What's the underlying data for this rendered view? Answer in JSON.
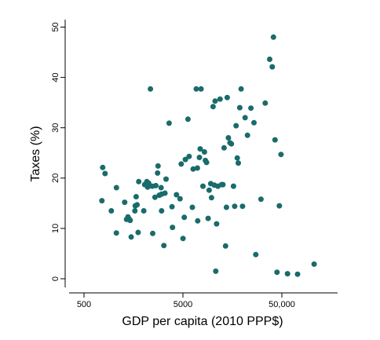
{
  "chart_data": {
    "type": "scatter",
    "title": "",
    "xlabel": "GDP per capita (2010 PPP$)",
    "ylabel": "Taxes (%)",
    "x_scale": "log",
    "xlim": [
      300,
      150000
    ],
    "ylim": [
      -2,
      52
    ],
    "x_ticks": [
      500,
      5000,
      50000
    ],
    "x_tick_labels": [
      "500",
      "5000",
      "50,000"
    ],
    "y_ticks": [
      0,
      10,
      20,
      30,
      40,
      50
    ],
    "y_tick_labels": [
      "0",
      "10",
      "20",
      "30",
      "40",
      "50"
    ],
    "grid": false,
    "marker_color": "#1a6b6b",
    "points": [
      [
        773,
        22.1
      ],
      [
        816,
        20.9
      ],
      [
        944,
        13.5
      ],
      [
        1064,
        18.1
      ],
      [
        758,
        15.5
      ],
      [
        1061,
        9.1
      ],
      [
        1289,
        15.2
      ],
      [
        1426,
        11.9
      ],
      [
        1347,
        11.8
      ],
      [
        1391,
        12.3
      ],
      [
        1465,
        11.6
      ],
      [
        1499,
        8.3
      ],
      [
        1635,
        13.5
      ],
      [
        1682,
        16.3
      ],
      [
        1648,
        14.5
      ],
      [
        1719,
        14.7
      ],
      [
        1762,
        9.2
      ],
      [
        1788,
        19.3
      ],
      [
        2054,
        18.7
      ],
      [
        2009,
        13.5
      ],
      [
        2156,
        19.3
      ],
      [
        2201,
        18.2
      ],
      [
        2248,
        19.0
      ],
      [
        2346,
        37.7
      ],
      [
        2448,
        18.4
      ],
      [
        2474,
        9.0
      ],
      [
        2662,
        18.5
      ],
      [
        2607,
        16.2
      ],
      [
        2803,
        22.4
      ],
      [
        2770,
        21.0
      ],
      [
        2885,
        16.6
      ],
      [
        3042,
        13.5
      ],
      [
        3010,
        18.1
      ],
      [
        3044,
        16.8
      ],
      [
        3205,
        6.6
      ],
      [
        3289,
        17.0
      ],
      [
        3375,
        19.8
      ],
      [
        3624,
        30.9
      ],
      [
        3876,
        14.3
      ],
      [
        3918,
        10.2
      ],
      [
        4307,
        16.7
      ],
      [
        4673,
        15.9
      ],
      [
        4807,
        22.8
      ],
      [
        5013,
        8.0
      ],
      [
        5154,
        12.2
      ],
      [
        5288,
        23.7
      ],
      [
        5620,
        31.7
      ],
      [
        5775,
        24.3
      ],
      [
        6221,
        14.2
      ],
      [
        6346,
        21.8
      ],
      [
        6822,
        37.7
      ],
      [
        7053,
        11.5
      ],
      [
        7001,
        22.0
      ],
      [
        7333,
        24.1
      ],
      [
        7474,
        25.8
      ],
      [
        7626,
        37.7
      ],
      [
        7964,
        18.4
      ],
      [
        8248,
        25.2
      ],
      [
        8432,
        23.5
      ],
      [
        8672,
        23.1
      ],
      [
        8992,
        12.0
      ],
      [
        9202,
        17.6
      ],
      [
        9543,
        18.9
      ],
      [
        9719,
        16.1
      ],
      [
        10083,
        34.2
      ],
      [
        10385,
        18.6
      ],
      [
        10582,
        35.3
      ],
      [
        10729,
        1.5
      ],
      [
        10958,
        10.9
      ],
      [
        11279,
        18.4
      ],
      [
        11863,
        35.7
      ],
      [
        12318,
        18.7
      ],
      [
        12678,
        18.7
      ],
      [
        13029,
        26.0
      ],
      [
        13475,
        6.5
      ],
      [
        13764,
        14.2
      ],
      [
        14026,
        36.0
      ],
      [
        14401,
        28.0
      ],
      [
        14929,
        27.0
      ],
      [
        15442,
        26.8
      ],
      [
        16223,
        18.4
      ],
      [
        16669,
        14.4
      ],
      [
        17223,
        30.4
      ],
      [
        17718,
        24.0
      ],
      [
        18138,
        23.0
      ],
      [
        18767,
        34.0
      ],
      [
        19380,
        37.7
      ],
      [
        20014,
        14.4
      ],
      [
        21240,
        32.0
      ],
      [
        22447,
        28.5
      ],
      [
        24357,
        33.9
      ],
      [
        26131,
        31.0
      ],
      [
        27271,
        4.8
      ],
      [
        30734,
        15.8
      ],
      [
        33917,
        34.9
      ],
      [
        37697,
        43.6
      ],
      [
        40038,
        42.1
      ],
      [
        41099,
        48.0
      ],
      [
        42628,
        27.6
      ],
      [
        44638,
        1.3
      ],
      [
        47198,
        14.5
      ],
      [
        48989,
        24.7
      ],
      [
        56994,
        1.0
      ],
      [
        72008,
        0.9
      ],
      [
        106010,
        2.9
      ]
    ]
  }
}
